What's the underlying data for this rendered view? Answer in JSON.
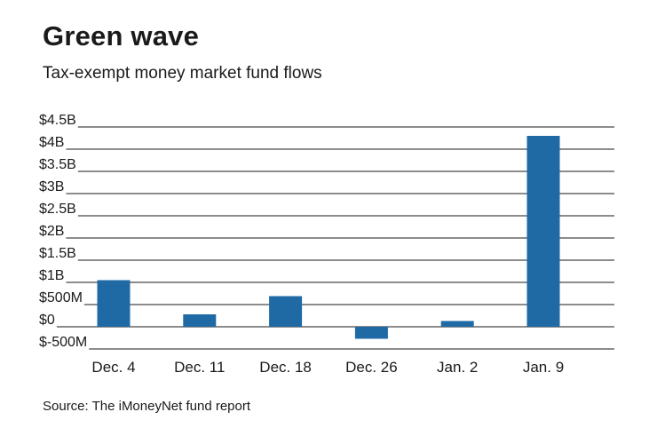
{
  "title": "Green wave",
  "subtitle": "Tax-exempt money market fund flows",
  "source": "Source: The iMoneyNet fund report",
  "colors": {
    "bar": "#1f6aa5",
    "grid": "#1a1a1a",
    "text": "#1a1a1a"
  },
  "chart_data": {
    "type": "bar",
    "title": "Green wave",
    "subtitle": "Tax-exempt money market fund flows",
    "xlabel": "",
    "ylabel": "",
    "categories": [
      "Dec. 4",
      "Dec. 11",
      "Dec. 18",
      "Dec. 26",
      "Jan. 2",
      "Jan. 9"
    ],
    "values": [
      1050000000,
      280000000,
      690000000,
      -270000000,
      130000000,
      4300000000
    ],
    "ylim": [
      -500000000,
      4500000000
    ],
    "yticks": [
      4500000000,
      4000000000,
      3500000000,
      3000000000,
      2500000000,
      2000000000,
      1500000000,
      1000000000,
      500000000,
      0,
      -500000000
    ],
    "ytick_labels": [
      "$4.5B",
      "$4B",
      "$3.5B",
      "$3B",
      "$2.5B",
      "$2B",
      "$1.5B",
      "$1B",
      "$500M",
      "$0",
      "$-500M"
    ],
    "grid": true,
    "legend": "none"
  }
}
